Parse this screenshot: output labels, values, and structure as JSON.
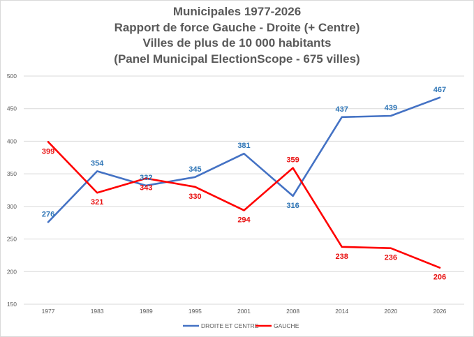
{
  "chart_data": {
    "type": "line",
    "title_lines": [
      "Municipales 1977-2026",
      "Rapport de force Gauche - Droite (+ Centre)",
      "Villes de plus de 10 000 habitants",
      "(Panel Municipal ElectionScope -  675 villes)"
    ],
    "categories": [
      "1977",
      "1983",
      "1989",
      "1995",
      "2001",
      "2008",
      "2014",
      "2020",
      "2026"
    ],
    "ylim": [
      150,
      500
    ],
    "yticks": [
      150,
      200,
      250,
      300,
      350,
      400,
      450,
      500
    ],
    "grid": true,
    "legend_position": "bottom",
    "series": [
      {
        "name": "DROITE ET CENTRE",
        "color": "#4472c4",
        "label_color": "#2e75b6",
        "values": [
          276,
          354,
          332,
          345,
          381,
          316,
          437,
          439,
          467
        ],
        "label_side": [
          "above",
          "above",
          "above",
          "above",
          "above",
          "below",
          "above",
          "above",
          "above"
        ]
      },
      {
        "name": "GAUCHE",
        "color": "#ff0000",
        "label_color": "#e81010",
        "values": [
          399,
          321,
          343,
          330,
          294,
          359,
          238,
          236,
          206
        ],
        "label_side": [
          "below",
          "below",
          "below",
          "below",
          "below",
          "above",
          "below",
          "below",
          "below"
        ]
      }
    ]
  }
}
